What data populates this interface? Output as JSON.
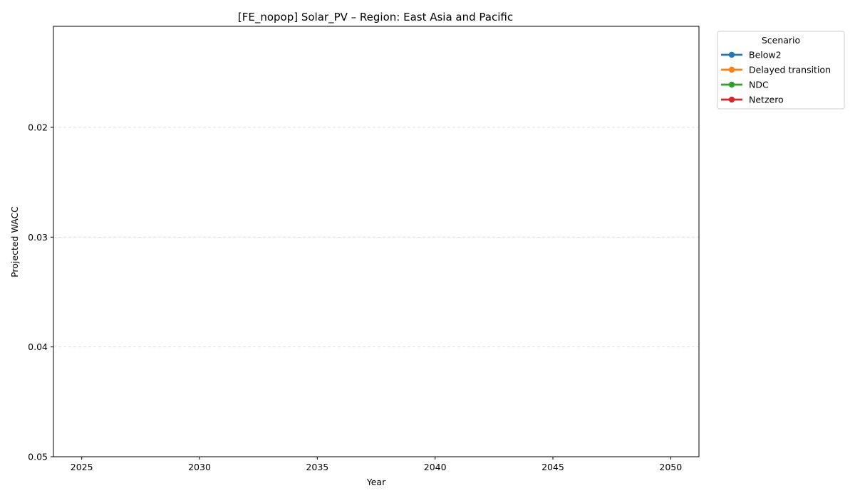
{
  "chart_data": {
    "type": "line",
    "title": "[FE_nopop] Solar_PV – Region: East Asia and Pacific",
    "xlabel": "Year",
    "ylabel": "Projected WACC",
    "x_ticks": [
      "2025",
      "2030",
      "2035",
      "2040",
      "2045",
      "2050"
    ],
    "y_ticks": [
      "0.02",
      "0.03",
      "0.04",
      "0.05"
    ],
    "xlim": [
      2023.8,
      2051.2
    ],
    "ylim": [
      0.05,
      0.0108
    ],
    "y_axis_inverted": true,
    "grid": "y-dashed",
    "legend": {
      "title": "Scenario",
      "placement": "outside-top-right",
      "entries": [
        {
          "name": "Below2",
          "color": "#1f77b4"
        },
        {
          "name": "Delayed transition",
          "color": "#ff7f0e"
        },
        {
          "name": "NDC",
          "color": "#2ca02c"
        },
        {
          "name": "Netzero",
          "color": "#d62728"
        }
      ]
    },
    "series": [
      {
        "name": "Below2",
        "color": "#1f77b4",
        "x": [],
        "y": []
      },
      {
        "name": "Delayed transition",
        "color": "#ff7f0e",
        "x": [],
        "y": []
      },
      {
        "name": "NDC",
        "color": "#2ca02c",
        "x": [],
        "y": []
      },
      {
        "name": "Netzero",
        "color": "#d62728",
        "x": [],
        "y": []
      }
    ]
  }
}
